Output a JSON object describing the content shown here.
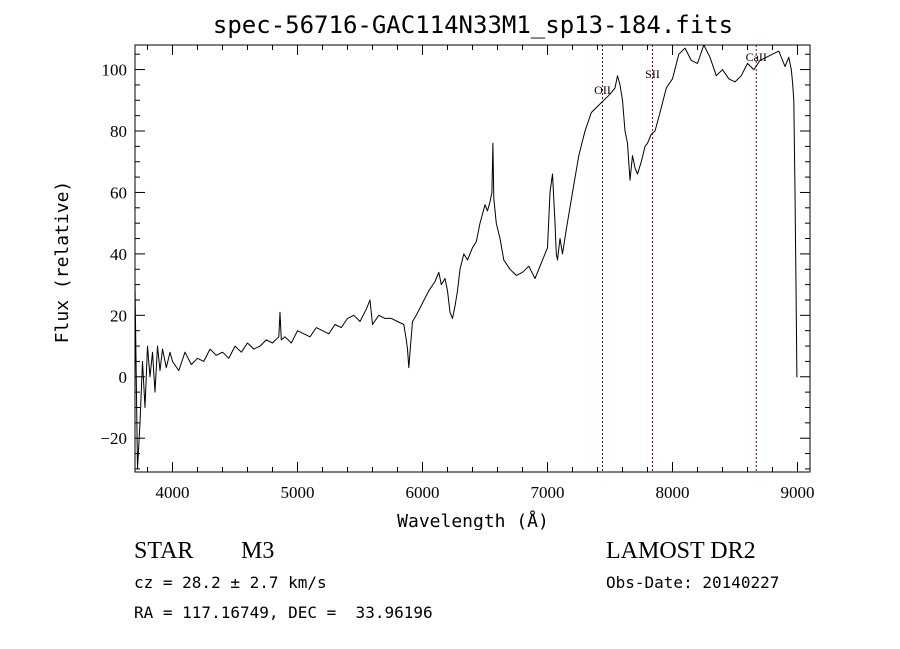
{
  "chart_data": {
    "type": "line",
    "title": "spec-56716-GAC114N33M1_sp13-184.fits",
    "xlabel": "Wavelength (Å)",
    "ylabel": "Flux (relative)",
    "xlim": [
      3700,
      9100
    ],
    "ylim": [
      -31,
      108
    ],
    "xticks": [
      4000,
      5000,
      6000,
      7000,
      8000,
      9000
    ],
    "yticks": [
      -20,
      0,
      20,
      40,
      60,
      80,
      100
    ],
    "x_minor_step": 200,
    "y_minor_step": 5,
    "grid": false,
    "line_color": "#000000",
    "marker_color": "#8b0000",
    "markers": [
      {
        "label": "OII",
        "wavelength": 7440
      },
      {
        "label": "SII",
        "wavelength": 7840
      },
      {
        "label": "CaII",
        "wavelength": 8670
      }
    ],
    "series": [
      {
        "x": [
          3700,
          3720,
          3740,
          3760,
          3780,
          3800,
          3820,
          3840,
          3860,
          3880,
          3900,
          3920,
          3950,
          3980,
          4000,
          4050,
          4100,
          4150,
          4200,
          4250,
          4300,
          4350,
          4400,
          4450,
          4500,
          4550,
          4600,
          4650,
          4700,
          4750,
          4800,
          4850,
          4860,
          4870,
          4900,
          4950,
          5000,
          5050,
          5100,
          5150,
          5200,
          5250,
          5300,
          5350,
          5400,
          5450,
          5500,
          5550,
          5580,
          5600,
          5650,
          5700,
          5750,
          5800,
          5850,
          5870,
          5880,
          5890,
          5900,
          5920,
          5950,
          6000,
          6050,
          6100,
          6130,
          6150,
          6180,
          6200,
          6220,
          6240,
          6260,
          6280,
          6300,
          6330,
          6360,
          6400,
          6430,
          6460,
          6500,
          6520,
          6540,
          6555,
          6563,
          6570,
          6590,
          6620,
          6650,
          6700,
          6750,
          6800,
          6850,
          6900,
          6950,
          7000,
          7020,
          7040,
          7060,
          7070,
          7080,
          7100,
          7120,
          7150,
          7200,
          7250,
          7300,
          7350,
          7400,
          7450,
          7500,
          7540,
          7560,
          7580,
          7600,
          7620,
          7640,
          7660,
          7680,
          7700,
          7720,
          7750,
          7780,
          7800,
          7830,
          7860,
          7900,
          7950,
          8000,
          8050,
          8100,
          8150,
          8200,
          8250,
          8300,
          8350,
          8400,
          8450,
          8500,
          8550,
          8600,
          8650,
          8700,
          8750,
          8800,
          8850,
          8900,
          8930,
          8950,
          8960,
          8970,
          8980,
          8990,
          8995,
          9000
        ],
        "y": [
          30,
          -30,
          -15,
          5,
          -10,
          10,
          0,
          8,
          -5,
          10,
          2,
          9,
          3,
          8,
          5,
          2,
          8,
          4,
          6,
          5,
          9,
          7,
          8,
          6,
          10,
          8,
          11,
          9,
          10,
          12,
          11,
          13,
          21,
          12,
          13,
          11,
          15,
          14,
          13,
          16,
          15,
          14,
          17,
          16,
          19,
          20,
          18,
          22,
          25,
          17,
          20,
          19,
          19,
          18,
          17,
          12,
          9,
          3,
          8,
          18,
          20,
          24,
          28,
          31,
          34,
          30,
          32,
          28,
          21,
          19,
          23,
          28,
          35,
          40,
          38,
          42,
          44,
          50,
          56,
          54,
          57,
          60,
          76,
          58,
          50,
          45,
          38,
          35,
          33,
          34,
          36,
          32,
          37,
          42,
          60,
          66,
          50,
          40,
          38,
          45,
          40,
          48,
          60,
          72,
          80,
          86,
          88,
          90,
          92,
          94,
          98,
          95,
          90,
          80,
          76,
          64,
          72,
          68,
          66,
          70,
          75,
          76,
          79,
          80,
          86,
          94,
          97,
          105,
          107,
          103,
          102,
          108,
          104,
          98,
          100,
          97,
          96,
          98,
          102,
          100,
          103,
          104,
          105,
          106,
          101,
          104,
          100,
          96,
          90,
          60,
          20,
          0,
          0
        ]
      }
    ]
  },
  "info": {
    "star_type": "STAR",
    "spectral_class": "M3",
    "survey": "LAMOST DR2",
    "cz": "cz = 28.2 ± 2.7 km/s",
    "obs_date": "Obs-Date: 20140227",
    "radec": "RA = 117.16749, DEC =  33.96196"
  }
}
